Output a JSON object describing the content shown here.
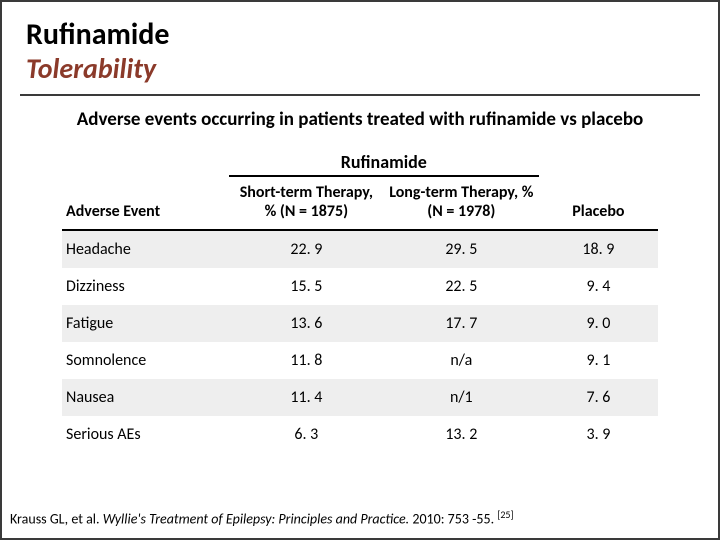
{
  "title": {
    "drug_name": "Rufinamide",
    "subtitle": "Tolerability"
  },
  "chart": {
    "title": "Adverse events occurring in patients treated with rufinamide vs placebo",
    "spanner": "Rufinamide",
    "columns": {
      "adverse_event": "Adverse Event",
      "short_term": "Short-term Therapy, % (N = 1875)",
      "long_term": "Long-term Therapy, % (N = 1978)",
      "placebo": "Placebo"
    },
    "rows": [
      {
        "event": "Headache",
        "short": "22. 9",
        "long": "29. 5",
        "placebo": "18. 9",
        "shaded": true
      },
      {
        "event": "Dizziness",
        "short": "15. 5",
        "long": "22. 5",
        "placebo": "9. 4",
        "shaded": false
      },
      {
        "event": "Fatigue",
        "short": "13. 6",
        "long": "17. 7",
        "placebo": "9. 0",
        "shaded": true
      },
      {
        "event": "Somnolence",
        "short": "11. 8",
        "long": "n/a",
        "placebo": "9. 1",
        "shaded": false
      },
      {
        "event": "Nausea",
        "short": "11. 4",
        "long": "n/1",
        "placebo": "7. 6",
        "shaded": true
      },
      {
        "event": "Serious AEs",
        "short": "6. 3",
        "long": "13. 2",
        "placebo": "3. 9",
        "shaded": false
      }
    ]
  },
  "citation": {
    "authors": "Krauss GL, et al. ",
    "source": "Wyllie's Treatment of Epilepsy: Principles and Practice. ",
    "year_pages": "2010: 753 -55. ",
    "ref": "[25]"
  },
  "style": {
    "title_color": "#000000",
    "subtitle_color": "#8b3a2a",
    "border_color": "#3a3a3a",
    "shaded_row_bg": "#eeeeee",
    "background": "#ffffff",
    "title_fontsize": 30,
    "subtitle_fontsize": 28,
    "chart_title_fontsize": 19,
    "header_fontsize": 16,
    "cell_fontsize": 16,
    "citation_fontsize": 14
  }
}
